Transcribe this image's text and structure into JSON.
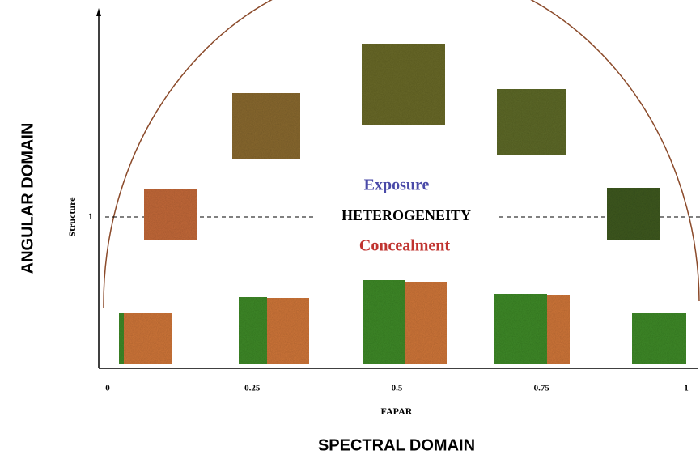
{
  "y_axis": {
    "title": "ANGULAR DOMAIN",
    "label": "Structure",
    "tick": "1"
  },
  "x_axis": {
    "ticks": [
      "0",
      "0.25",
      "0.5",
      "0.75",
      "1"
    ],
    "label": "FAPAR",
    "title": "SPECTRAL DOMAIN"
  },
  "annotations": {
    "top": "Exposure",
    "middle": "HETEROGENEITY",
    "bottom": "Concealment"
  }
}
